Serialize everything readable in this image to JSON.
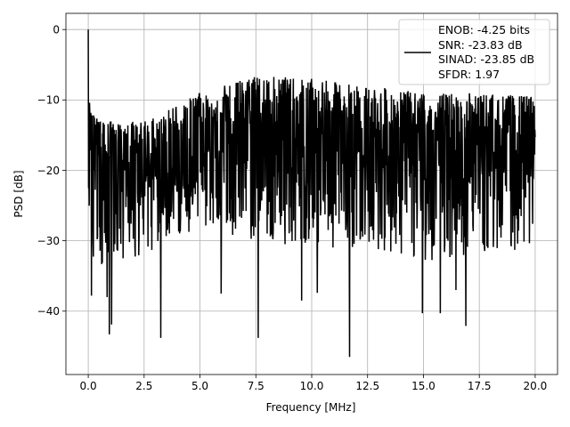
{
  "chart_data": {
    "type": "line",
    "title": "",
    "xlabel": "Frequency [MHz]",
    "ylabel": "PSD [dB]",
    "xlim": [
      -1.0,
      21.0
    ],
    "ylim": [
      -49.0,
      2.3
    ],
    "grid": true,
    "xticks": [
      0.0,
      2.5,
      5.0,
      7.5,
      10.0,
      12.5,
      15.0,
      17.5,
      20.0
    ],
    "xtick_labels": [
      "0.0",
      "2.5",
      "5.0",
      "7.5",
      "10.0",
      "12.5",
      "15.0",
      "17.5",
      "20.0"
    ],
    "yticks": [
      0,
      -10,
      -20,
      -30,
      -40
    ],
    "ytick_labels": [
      "0",
      "−10",
      "−20",
      "−30",
      "−40"
    ],
    "legend": {
      "placement": "top-right",
      "lines": [
        "ENOB: -4.25 bits",
        "SNR: -23.83 dB",
        "SINAD: -23.85 dB",
        "SFDR: 1.97"
      ]
    },
    "series": [
      {
        "color": "#000000",
        "x_range": [
          0.0,
          20.0
        ],
        "peak": {
          "x": 0.0,
          "y": 0.0
        },
        "band_center": [
          [
            0.0,
            -14
          ],
          [
            0.5,
            -20
          ],
          [
            2.5,
            -21
          ],
          [
            5.0,
            -17
          ],
          [
            7.5,
            -15
          ],
          [
            10.0,
            -16
          ],
          [
            12.5,
            -17
          ],
          [
            15.0,
            -18
          ],
          [
            17.5,
            -17
          ],
          [
            20.0,
            -17
          ]
        ],
        "band_top": [
          [
            0.0,
            -10
          ],
          [
            0.5,
            -13
          ],
          [
            2.5,
            -13
          ],
          [
            5.0,
            -9
          ],
          [
            7.5,
            -6.5
          ],
          [
            10.0,
            -7
          ],
          [
            12.5,
            -8
          ],
          [
            15.0,
            -9
          ],
          [
            17.5,
            -9
          ],
          [
            20.0,
            -9.5
          ]
        ],
        "band_bottom": [
          [
            0.0,
            -32
          ],
          [
            0.5,
            -34
          ],
          [
            2.5,
            -32
          ],
          [
            5.0,
            -28
          ],
          [
            7.5,
            -30
          ],
          [
            10.0,
            -31
          ],
          [
            12.5,
            -31
          ],
          [
            15.0,
            -33
          ],
          [
            17.5,
            -32
          ],
          [
            20.0,
            -31
          ]
        ],
        "deep_dips": [
          {
            "x": 0.95,
            "y": -43.3
          },
          {
            "x": 1.05,
            "y": -41.9
          },
          {
            "x": 3.25,
            "y": -43.8
          },
          {
            "x": 7.6,
            "y": -43.8
          },
          {
            "x": 9.55,
            "y": -46.7
          },
          {
            "x": 11.7,
            "y": -46.5
          },
          {
            "x": 14.95,
            "y": -40.3
          },
          {
            "x": 15.75,
            "y": -40.3
          },
          {
            "x": 16.9,
            "y": -42.1
          },
          {
            "x": 5.95,
            "y": -37.5
          },
          {
            "x": 0.15,
            "y": -37.8
          },
          {
            "x": 0.85,
            "y": -38.0
          },
          {
            "x": 9.55,
            "y": -38.5
          },
          {
            "x": 10.25,
            "y": -37.4
          },
          {
            "x": 16.45,
            "y": -37.0
          }
        ]
      }
    ]
  }
}
